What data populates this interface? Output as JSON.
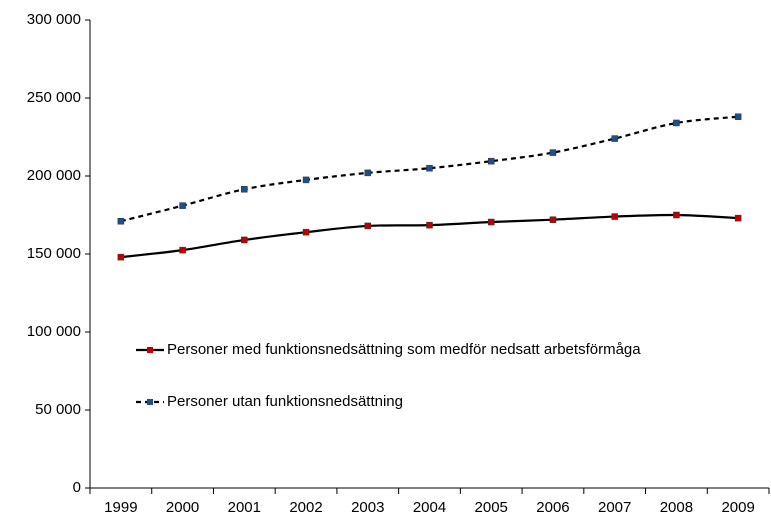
{
  "chart_data": {
    "type": "line",
    "categories": [
      "1999",
      "2000",
      "2001",
      "2002",
      "2003",
      "2004",
      "2005",
      "2006",
      "2007",
      "2008",
      "2009"
    ],
    "series": [
      {
        "name": "Personer med funktionsnedsättning som medför nedsatt arbetsförmåga",
        "color": "#000000",
        "marker_color": "#c00000",
        "line_style": "solid",
        "values": [
          148000,
          152500,
          159000,
          164000,
          168000,
          168500,
          170500,
          172000,
          174000,
          175000,
          173000
        ]
      },
      {
        "name": "Personer utan funktionsnedsättning",
        "color": "#000000",
        "marker_color": "#1f4e8c",
        "line_style": "dashed",
        "values": [
          171000,
          181000,
          191500,
          197500,
          202000,
          205000,
          209500,
          215000,
          224000,
          234000,
          238000
        ]
      }
    ],
    "ylim": [
      0,
      300000
    ],
    "yticks": [
      {
        "value": 0,
        "label": "0"
      },
      {
        "value": 50000,
        "label": "50 000"
      },
      {
        "value": 100000,
        "label": "100 000"
      },
      {
        "value": 150000,
        "label": "150 000"
      },
      {
        "value": 200000,
        "label": "200 000"
      },
      {
        "value": 250000,
        "label": "250 000"
      },
      {
        "value": 300000,
        "label": "300 000"
      }
    ],
    "grid": false,
    "smooth": true,
    "legend": "inside-left"
  }
}
